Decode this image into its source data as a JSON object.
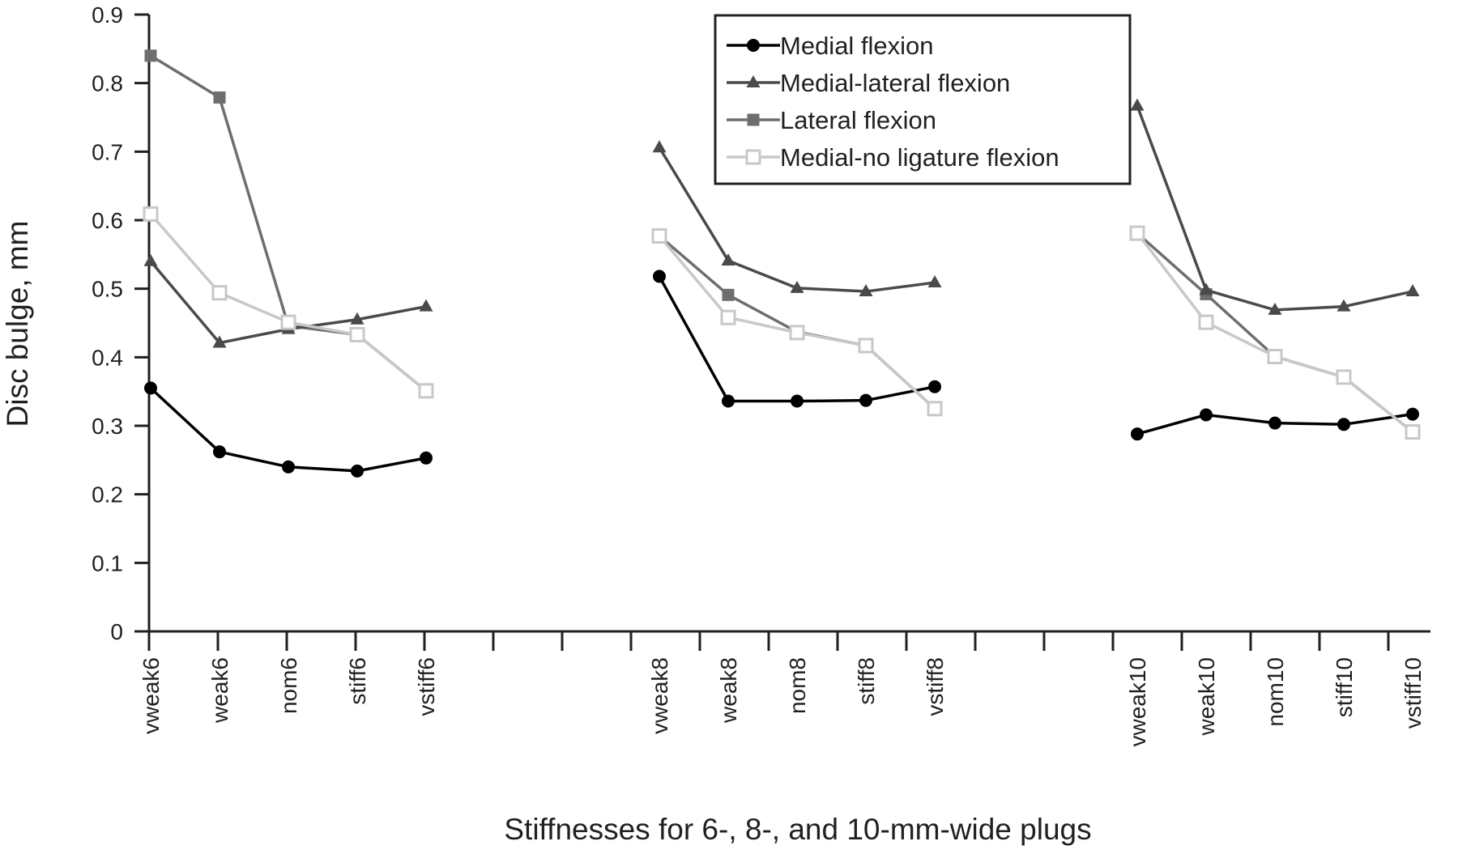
{
  "chart_data": {
    "type": "line",
    "title": "",
    "xlabel": "Stiffnesses for 6-, 8-, and 10-mm-wide plugs",
    "ylabel": "Disc bulge, mm",
    "ylim": [
      0,
      0.9
    ],
    "yticks": [
      "0",
      "0.1",
      "0.2",
      "0.3",
      "0.4",
      "0.5",
      "0.6",
      "0.7",
      "0.8",
      "0.9"
    ],
    "legend_position": "top-center",
    "grid": false,
    "groups": [
      {
        "categories": [
          "vweak6",
          "weak6",
          "nom6",
          "stiff6",
          "vstiff6"
        ]
      },
      {
        "categories": [
          "vweak8",
          "weak8",
          "nom8",
          "stiff8",
          "vstiff8"
        ]
      },
      {
        "categories": [
          "vweak10",
          "weak10",
          "nom10",
          "stiff10",
          "vstiff10"
        ]
      }
    ],
    "series": [
      {
        "name": "Medial flexion",
        "marker": "circle-filled",
        "color": "#000000",
        "values": [
          [
            0.355,
            0.262,
            0.24,
            0.234,
            0.253
          ],
          [
            0.518,
            0.336,
            0.336,
            0.337,
            0.357
          ],
          [
            0.288,
            0.316,
            0.304,
            0.302,
            0.317
          ]
        ]
      },
      {
        "name": "Medial-lateral flexion",
        "marker": "triangle-filled",
        "color": "#4a4a4a",
        "values": [
          [
            0.54,
            0.421,
            0.441,
            0.455,
            0.474
          ],
          [
            0.706,
            0.541,
            0.501,
            0.496,
            0.509
          ],
          [
            0.767,
            0.498,
            0.469,
            0.474,
            0.496
          ]
        ]
      },
      {
        "name": "Lateral flexion",
        "marker": "square-filled",
        "color": "#6e6e6e",
        "values": [
          [
            0.84,
            0.779,
            0.446,
            0.433,
            0.351
          ],
          [
            0.577,
            0.491,
            0.437,
            0.417,
            0.325
          ],
          [
            0.581,
            0.492,
            0.401,
            0.371,
            0.291
          ]
        ]
      },
      {
        "name": "Medial-no ligature flexion",
        "marker": "square-open",
        "color": "#c8c8c8",
        "values": [
          [
            0.609,
            0.494,
            0.451,
            0.433,
            0.351
          ],
          [
            0.577,
            0.458,
            0.436,
            0.417,
            0.325
          ],
          [
            0.581,
            0.451,
            0.401,
            0.371,
            0.291
          ]
        ]
      }
    ]
  }
}
